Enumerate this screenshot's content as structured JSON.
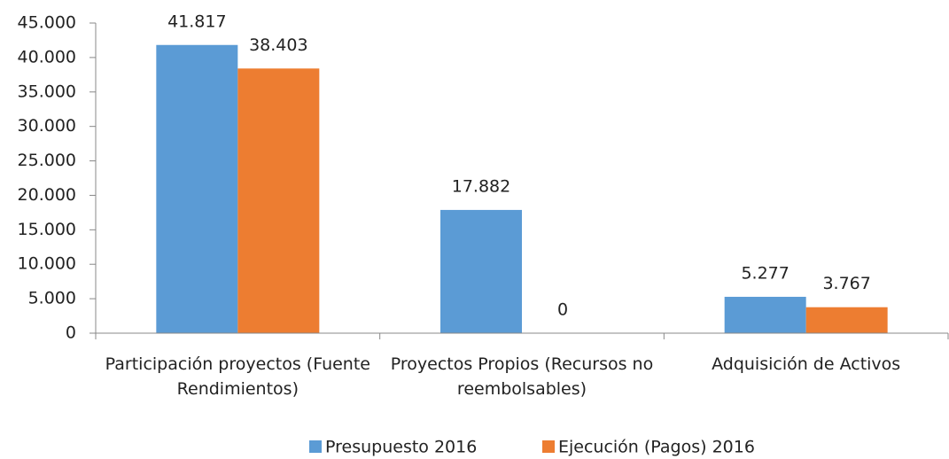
{
  "chart_data": {
    "type": "bar",
    "categories": [
      "Participación proyectos (Fuente Rendimientos)",
      "Proyectos Propios (Recursos no reembolsables)",
      "Adquisición de Activos"
    ],
    "series": [
      {
        "name": "Presupuesto 2016",
        "color": "#5b9bd5",
        "values": [
          41817,
          17882,
          5277
        ],
        "value_labels": [
          "41.817",
          "17.882",
          "5.277"
        ]
      },
      {
        "name": "Ejecución (Pagos) 2016",
        "color": "#ed7d31",
        "values": [
          38403,
          0,
          3767
        ],
        "value_labels": [
          "38.403",
          "0",
          "3.767"
        ]
      }
    ],
    "ylim": [
      0,
      45000
    ],
    "yticks": [
      0,
      {
        "value": 5000,
        "label": "5.000"
      },
      {
        "value": 10000,
        "label": "10.000"
      },
      {
        "value": 15000,
        "label": "15.000"
      },
      {
        "value": 20000,
        "label": "20.000"
      },
      {
        "value": 25000,
        "label": "25.000"
      },
      {
        "value": 30000,
        "label": "30.000"
      },
      {
        "value": 35000,
        "label": "35.000"
      },
      {
        "value": 40000,
        "label": "40.000"
      },
      {
        "value": 45000,
        "label": "45.000"
      }
    ],
    "legend": "bottom",
    "grid": false
  }
}
